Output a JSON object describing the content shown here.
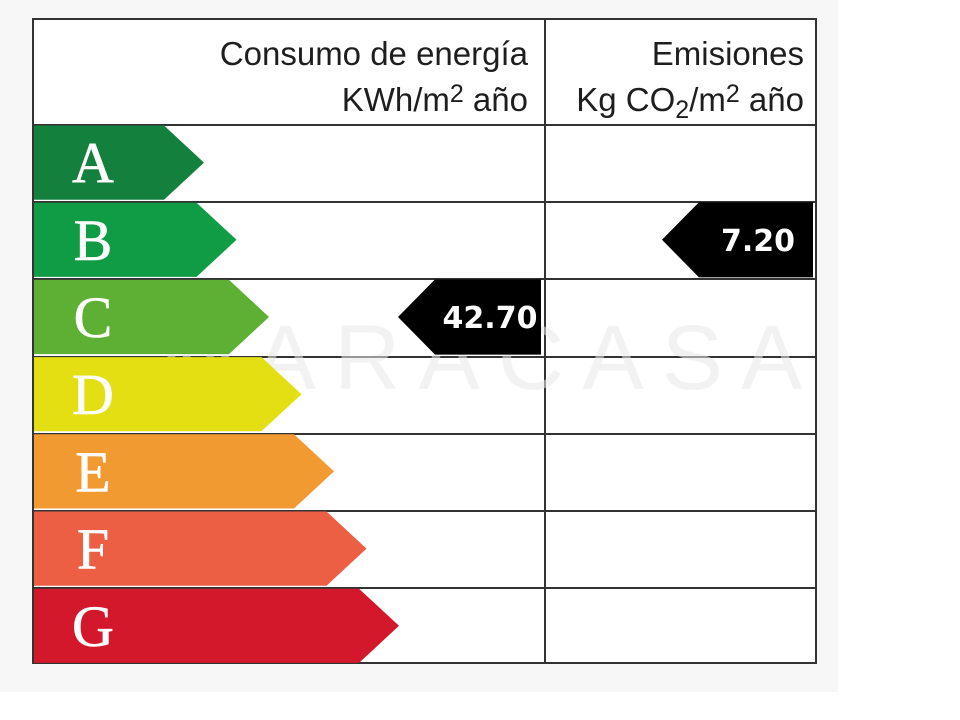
{
  "header": {
    "energy_line1": "Consumo de energía",
    "energy_line2_prefix": "KWh/m",
    "energy_line2_sup": "2",
    "energy_line2_suffix": " año",
    "emissions_line1": "Emisiones",
    "emissions_line2_prefix": "Kg CO",
    "emissions_line2_sub": "2",
    "emissions_line2_mid": "/m",
    "emissions_line2_sup": "2",
    "emissions_line2_suffix": " año"
  },
  "chart_data": {
    "type": "table",
    "ratings": [
      {
        "letter": "A",
        "color": "#14803e"
      },
      {
        "letter": "B",
        "color": "#0f9c45"
      },
      {
        "letter": "C",
        "color": "#5db033"
      },
      {
        "letter": "D",
        "color": "#e3df12"
      },
      {
        "letter": "E",
        "color": "#f29a32"
      },
      {
        "letter": "F",
        "color": "#ec5f45"
      },
      {
        "letter": "G",
        "color": "#d3182b"
      }
    ],
    "consumption": {
      "value": "42.70",
      "rating": "C"
    },
    "emissions": {
      "value": "7.20",
      "rating": "B"
    },
    "marker_color": "#000000"
  },
  "watermark": "MARACASA"
}
